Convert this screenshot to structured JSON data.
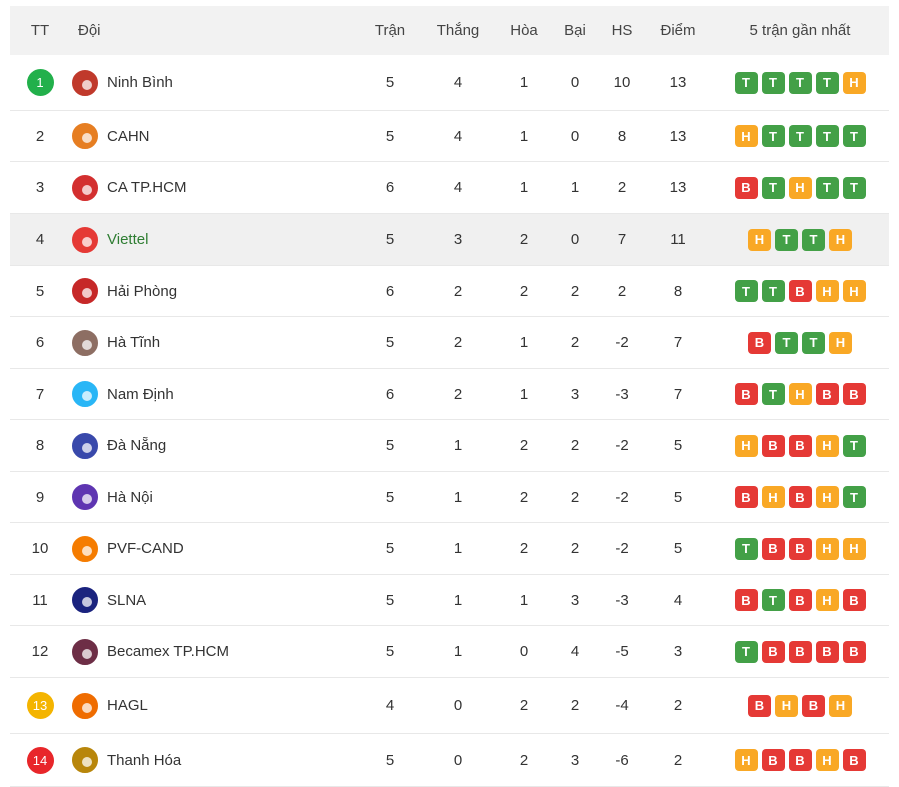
{
  "header": {
    "rank": "TT",
    "team": "Đội",
    "played": "Trận",
    "won": "Thắng",
    "drawn": "Hòa",
    "lost": "Bại",
    "gd": "HS",
    "points": "Điểm",
    "form": "5 trận gần nhất"
  },
  "colors": {
    "T": "#43a047",
    "H": "#f9a825",
    "B": "#e53935",
    "rank_green": "#22b04b",
    "rank_yellow": "#f4b400",
    "rank_red": "#e8262a"
  },
  "rows": [
    {
      "rank": "1",
      "team": "Ninh Bình",
      "p": "5",
      "w": "4",
      "d": "1",
      "l": "0",
      "gd": "10",
      "pts": "13",
      "form": [
        "T",
        "T",
        "T",
        "T",
        "H"
      ],
      "badge": "rank_green",
      "logo": "#c0392b",
      "logo_icon": "ninh-binh-logo-icon"
    },
    {
      "rank": "2",
      "team": "CAHN",
      "p": "5",
      "w": "4",
      "d": "1",
      "l": "0",
      "gd": "8",
      "pts": "13",
      "form": [
        "H",
        "T",
        "T",
        "T",
        "T"
      ],
      "logo": "#e67e22",
      "logo_icon": "cahn-logo-icon"
    },
    {
      "rank": "3",
      "team": "CA TP.HCM",
      "p": "6",
      "w": "4",
      "d": "1",
      "l": "1",
      "gd": "2",
      "pts": "13",
      "form": [
        "B",
        "T",
        "H",
        "T",
        "T"
      ],
      "logo": "#d32f2f",
      "logo_icon": "ca-tphcm-logo-icon"
    },
    {
      "rank": "4",
      "team": "Viettel",
      "p": "5",
      "w": "3",
      "d": "2",
      "l": "0",
      "gd": "7",
      "pts": "11",
      "form": [
        "H",
        "T",
        "T",
        "H"
      ],
      "logo": "#e53935",
      "logo_icon": "viettel-logo-icon",
      "highlight": true
    },
    {
      "rank": "5",
      "team": "Hải Phòng",
      "p": "6",
      "w": "2",
      "d": "2",
      "l": "2",
      "gd": "2",
      "pts": "8",
      "form": [
        "T",
        "T",
        "B",
        "H",
        "H"
      ],
      "logo": "#c62828",
      "logo_icon": "hai-phong-logo-icon"
    },
    {
      "rank": "6",
      "team": "Hà Tĩnh",
      "p": "5",
      "w": "2",
      "d": "1",
      "l": "2",
      "gd": "-2",
      "pts": "7",
      "form": [
        "B",
        "T",
        "T",
        "H"
      ],
      "logo": "#8d6e63",
      "logo_icon": "ha-tinh-logo-icon"
    },
    {
      "rank": "7",
      "team": "Nam Định",
      "p": "6",
      "w": "2",
      "d": "1",
      "l": "3",
      "gd": "-3",
      "pts": "7",
      "form": [
        "B",
        "T",
        "H",
        "B",
        "B"
      ],
      "logo": "#29b6f6",
      "logo_icon": "nam-dinh-logo-icon"
    },
    {
      "rank": "8",
      "team": "Đà Nẵng",
      "p": "5",
      "w": "1",
      "d": "2",
      "l": "2",
      "gd": "-2",
      "pts": "5",
      "form": [
        "H",
        "B",
        "B",
        "H",
        "T"
      ],
      "logo": "#3949ab",
      "logo_icon": "da-nang-logo-icon"
    },
    {
      "rank": "9",
      "team": "Hà Nội",
      "p": "5",
      "w": "1",
      "d": "2",
      "l": "2",
      "gd": "-2",
      "pts": "5",
      "form": [
        "B",
        "H",
        "B",
        "H",
        "T"
      ],
      "logo": "#5e35b1",
      "logo_icon": "ha-noi-logo-icon"
    },
    {
      "rank": "10",
      "team": "PVF-CAND",
      "p": "5",
      "w": "1",
      "d": "2",
      "l": "2",
      "gd": "-2",
      "pts": "5",
      "form": [
        "T",
        "B",
        "B",
        "H",
        "H"
      ],
      "logo": "#f57c00",
      "logo_icon": "pvf-cand-logo-icon"
    },
    {
      "rank": "11",
      "team": "SLNA",
      "p": "5",
      "w": "1",
      "d": "1",
      "l": "3",
      "gd": "-3",
      "pts": "4",
      "form": [
        "B",
        "T",
        "B",
        "H",
        "B"
      ],
      "logo": "#1a237e",
      "logo_icon": "slna-logo-icon"
    },
    {
      "rank": "12",
      "team": "Becamex TP.HCM",
      "p": "5",
      "w": "1",
      "d": "0",
      "l": "4",
      "gd": "-5",
      "pts": "3",
      "form": [
        "T",
        "B",
        "B",
        "B",
        "B"
      ],
      "logo": "#6d2e46",
      "logo_icon": "becamex-logo-icon"
    },
    {
      "rank": "13",
      "team": "HAGL",
      "p": "4",
      "w": "0",
      "d": "2",
      "l": "2",
      "gd": "-4",
      "pts": "2",
      "form": [
        "B",
        "H",
        "B",
        "H"
      ],
      "badge": "rank_yellow",
      "logo": "#ef6c00",
      "logo_icon": "hagl-logo-icon"
    },
    {
      "rank": "14",
      "team": "Thanh Hóa",
      "p": "5",
      "w": "0",
      "d": "2",
      "l": "3",
      "gd": "-6",
      "pts": "2",
      "form": [
        "H",
        "B",
        "B",
        "H",
        "B"
      ],
      "badge": "rank_red",
      "logo": "#b8860b",
      "logo_icon": "thanh-hoa-logo-icon"
    }
  ]
}
